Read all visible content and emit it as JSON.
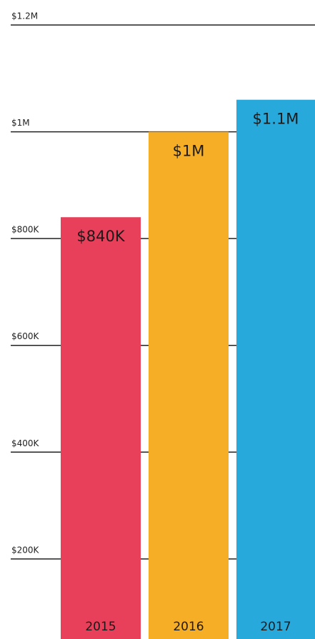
{
  "chart_data": {
    "type": "bar",
    "categories": [
      "2015",
      "2016",
      "2017"
    ],
    "values": [
      840000,
      1000000,
      1060000
    ],
    "value_labels": [
      "$840K",
      "$1M",
      "$1.1M"
    ],
    "colors": [
      "#e8405a",
      "#f7ae27",
      "#27a9dc"
    ],
    "ylim": [
      50000,
      1200000
    ],
    "yticks": [
      {
        "value": 200000,
        "label": "$200K"
      },
      {
        "value": 400000,
        "label": "$400K"
      },
      {
        "value": 600000,
        "label": "$600K"
      },
      {
        "value": 800000,
        "label": "$800K"
      },
      {
        "value": 1000000,
        "label": "$1M"
      },
      {
        "value": 1200000,
        "label": "$1.2M"
      }
    ],
    "grid": true
  }
}
